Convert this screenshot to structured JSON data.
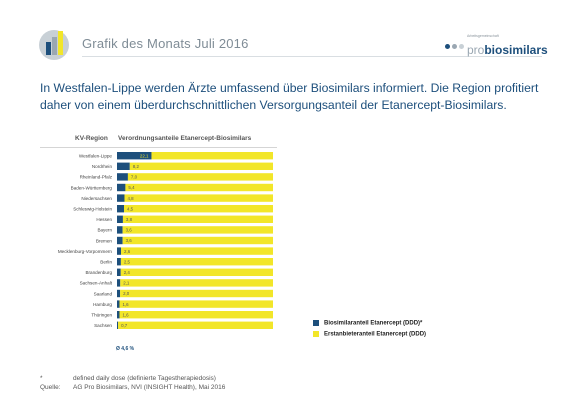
{
  "header": {
    "title": "Grafik des Monats Juli 2016",
    "brand_small": "Arbeitsgemeinschaft",
    "brand_pro": "pro",
    "brand_bio": "biosimilars"
  },
  "headline": "In Westfalen-Lippe werden Ärzte umfassend über Biosimilars informiert. Die Region profitiert daher von einem überdurchschnittlichen Versorgungsanteil der Etanercept-Biosimilars.",
  "columns": {
    "region": "KV-Region",
    "share": "Verordnungsanteile Etanercept-Biosimilars"
  },
  "colors": {
    "biosimilar": "#1d4f7c",
    "originator": "#f2e629",
    "accent": "#1d4f7c"
  },
  "chart_data": {
    "type": "bar",
    "orientation": "horizontal",
    "stacked": true,
    "percent": true,
    "xlim": [
      0,
      100
    ],
    "categories": [
      "Westfalen-Lippe",
      "Nordrhein",
      "Rheinland-Pfalz",
      "Baden-Württemberg",
      "Niedersachsen",
      "Schleswig-Holstein",
      "Hessen",
      "Bayern",
      "Bremen",
      "Mecklenburg-Vorpommern",
      "Berlin",
      "Brandenburg",
      "Sachsen-Anhalt",
      "Saarland",
      "Hamburg",
      "Thüringen",
      "Sachsen"
    ],
    "series": [
      {
        "name": "Biosimilaranteil Etanercept (DDD)*",
        "values": [
          22.1,
          8.2,
          7.0,
          5.4,
          4.8,
          4.5,
          3.8,
          3.6,
          3.6,
          2.6,
          2.5,
          2.4,
          2.1,
          2.0,
          1.6,
          1.6,
          0.7
        ]
      },
      {
        "name": "Erstanbieteranteil Etanercept (DDD)",
        "values": [
          77.9,
          91.8,
          93.0,
          94.6,
          95.2,
          95.5,
          96.2,
          96.4,
          96.4,
          97.4,
          97.5,
          97.6,
          97.9,
          98.0,
          98.4,
          98.4,
          99.3
        ]
      }
    ],
    "value_labels": [
      "22,1",
      "8,2",
      "7,0",
      "5,4",
      "4,8",
      "4,5",
      "3,8",
      "3,6",
      "3,6",
      "2,6",
      "2,5",
      "2,4",
      "2,1",
      "2,0",
      "1,6",
      "1,6",
      "0,7"
    ],
    "mean_label": "Ø 4,6 %",
    "legend_position": "right"
  },
  "footnotes": [
    {
      "label": "*",
      "text": "defined daily dose (definierte Tagestherapiedosis)"
    },
    {
      "label": "Quelle:",
      "text": "AG Pro Biosimilars, NVI (INSIGHT Health), Mai 2016"
    }
  ]
}
